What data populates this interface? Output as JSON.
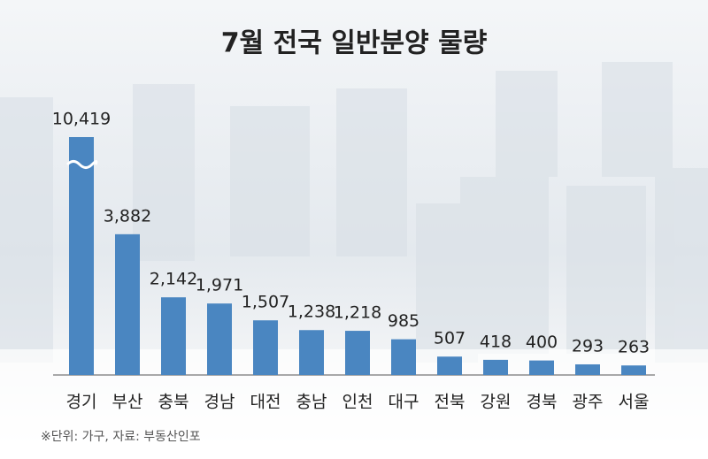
{
  "chart_data": {
    "type": "bar",
    "title": "7월 전국 일반분양 물량",
    "categories": [
      "경기",
      "부산",
      "충북",
      "경남",
      "대전",
      "충남",
      "인천",
      "대구",
      "전북",
      "강원",
      "경북",
      "광주",
      "서울"
    ],
    "values": [
      10419,
      3882,
      2142,
      1971,
      1507,
      1238,
      1218,
      985,
      507,
      418,
      400,
      293,
      263
    ],
    "value_labels": [
      "10,419",
      "3,882",
      "2,142",
      "1,971",
      "1,507",
      "1,238",
      "1,218",
      "985",
      "507",
      "418",
      "400",
      "293",
      "263"
    ],
    "color": "#4a86c1",
    "note": "※단위: 가구, 자료: 부동산인포"
  }
}
